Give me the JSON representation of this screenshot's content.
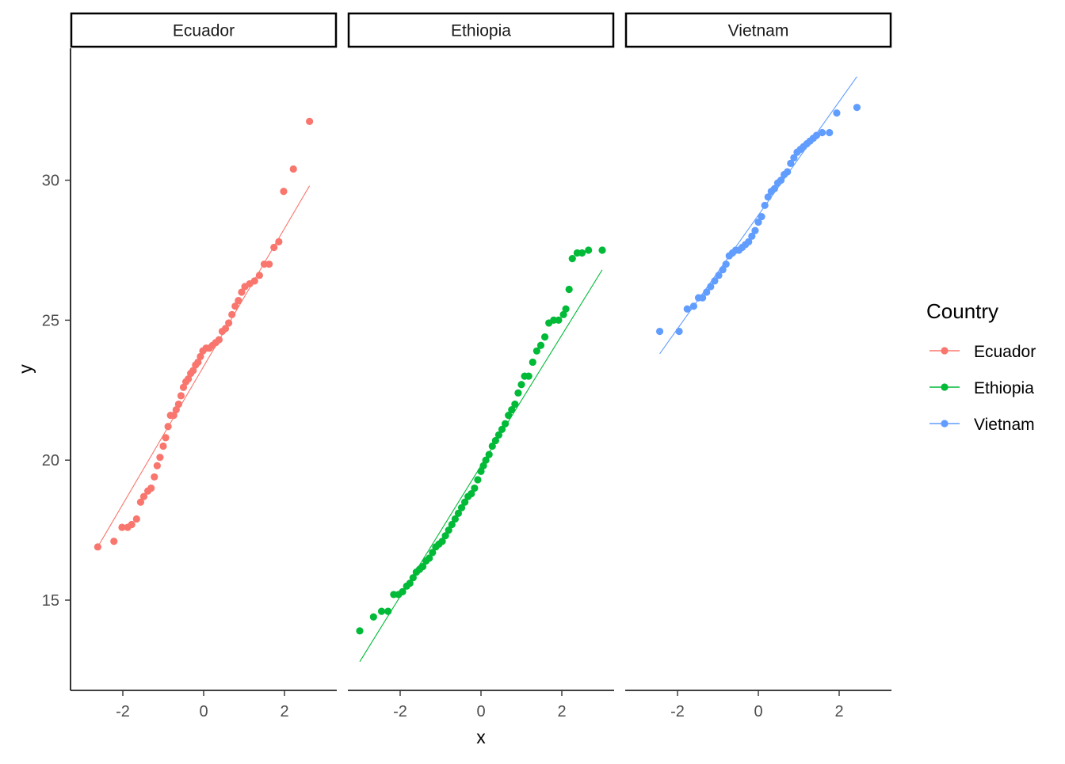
{
  "chart_data": {
    "type": "scatter",
    "subtype": "qq-plot",
    "xlabel": "x",
    "ylabel": "y",
    "xlim": [
      -3.2,
      3.2
    ],
    "ylim": [
      11.8,
      34.5
    ],
    "x_ticks": [
      -2,
      0,
      2
    ],
    "x_tick_labels": [
      "-2",
      "0",
      "2"
    ],
    "y_ticks": [
      15,
      20,
      25,
      30
    ],
    "y_tick_labels": [
      "15",
      "20",
      "25",
      "30"
    ],
    "grid": false,
    "legend": {
      "title": "Country",
      "position": "right",
      "entries": [
        "Ecuador",
        "Ethiopia",
        "Vietnam"
      ]
    },
    "series": [
      {
        "name": "Ecuador",
        "color": "#F8766D",
        "line": {
          "x": [
            -2.62,
            2.62
          ],
          "y": [
            16.9,
            29.8
          ]
        },
        "points": [
          [
            -2.62,
            16.9
          ],
          [
            -2.22,
            17.1
          ],
          [
            -2.02,
            17.6
          ],
          [
            -1.88,
            17.6
          ],
          [
            -1.78,
            17.7
          ],
          [
            -1.66,
            17.9
          ],
          [
            -1.56,
            18.5
          ],
          [
            -1.48,
            18.7
          ],
          [
            -1.38,
            18.9
          ],
          [
            -1.3,
            19.0
          ],
          [
            -1.22,
            19.4
          ],
          [
            -1.15,
            19.8
          ],
          [
            -1.08,
            20.1
          ],
          [
            -1.0,
            20.5
          ],
          [
            -0.94,
            20.8
          ],
          [
            -0.88,
            21.2
          ],
          [
            -0.82,
            21.6
          ],
          [
            -0.74,
            21.6
          ],
          [
            -0.68,
            21.8
          ],
          [
            -0.62,
            22.0
          ],
          [
            -0.56,
            22.3
          ],
          [
            -0.5,
            22.6
          ],
          [
            -0.44,
            22.8
          ],
          [
            -0.38,
            22.9
          ],
          [
            -0.32,
            23.1
          ],
          [
            -0.26,
            23.2
          ],
          [
            -0.2,
            23.4
          ],
          [
            -0.14,
            23.5
          ],
          [
            -0.08,
            23.7
          ],
          [
            -0.02,
            23.9
          ],
          [
            0.06,
            24.0
          ],
          [
            0.14,
            24.0
          ],
          [
            0.22,
            24.1
          ],
          [
            0.3,
            24.2
          ],
          [
            0.38,
            24.3
          ],
          [
            0.46,
            24.6
          ],
          [
            0.54,
            24.7
          ],
          [
            0.62,
            24.9
          ],
          [
            0.7,
            25.2
          ],
          [
            0.78,
            25.5
          ],
          [
            0.86,
            25.7
          ],
          [
            0.94,
            26.0
          ],
          [
            1.02,
            26.2
          ],
          [
            1.14,
            26.3
          ],
          [
            1.26,
            26.4
          ],
          [
            1.38,
            26.6
          ],
          [
            1.5,
            27.0
          ],
          [
            1.62,
            27.0
          ],
          [
            1.74,
            27.6
          ],
          [
            1.86,
            27.8
          ],
          [
            1.98,
            29.6
          ],
          [
            2.22,
            30.4
          ],
          [
            2.62,
            32.1
          ]
        ]
      },
      {
        "name": "Ethiopia",
        "color": "#00BA38",
        "line": {
          "x": [
            -3.0,
            3.0
          ],
          "y": [
            12.8,
            26.8
          ]
        },
        "points": [
          [
            -3.0,
            13.9
          ],
          [
            -2.66,
            14.4
          ],
          [
            -2.46,
            14.6
          ],
          [
            -2.3,
            14.6
          ],
          [
            -2.16,
            15.2
          ],
          [
            -2.04,
            15.2
          ],
          [
            -1.94,
            15.3
          ],
          [
            -1.84,
            15.5
          ],
          [
            -1.76,
            15.6
          ],
          [
            -1.68,
            15.8
          ],
          [
            -1.6,
            16.0
          ],
          [
            -1.52,
            16.1
          ],
          [
            -1.44,
            16.2
          ],
          [
            -1.36,
            16.4
          ],
          [
            -1.28,
            16.5
          ],
          [
            -1.2,
            16.7
          ],
          [
            -1.12,
            16.9
          ],
          [
            -1.04,
            17.0
          ],
          [
            -0.96,
            17.1
          ],
          [
            -0.88,
            17.3
          ],
          [
            -0.8,
            17.5
          ],
          [
            -0.72,
            17.7
          ],
          [
            -0.64,
            17.9
          ],
          [
            -0.56,
            18.1
          ],
          [
            -0.48,
            18.3
          ],
          [
            -0.4,
            18.5
          ],
          [
            -0.32,
            18.7
          ],
          [
            -0.24,
            18.8
          ],
          [
            -0.16,
            19.0
          ],
          [
            -0.08,
            19.3
          ],
          [
            0.0,
            19.6
          ],
          [
            0.06,
            19.8
          ],
          [
            0.12,
            20.0
          ],
          [
            0.2,
            20.2
          ],
          [
            0.28,
            20.5
          ],
          [
            0.36,
            20.7
          ],
          [
            0.44,
            20.9
          ],
          [
            0.52,
            21.1
          ],
          [
            0.6,
            21.3
          ],
          [
            0.68,
            21.6
          ],
          [
            0.76,
            21.8
          ],
          [
            0.84,
            22.0
          ],
          [
            0.92,
            22.4
          ],
          [
            1.0,
            22.7
          ],
          [
            1.08,
            23.0
          ],
          [
            1.18,
            23.0
          ],
          [
            1.28,
            23.5
          ],
          [
            1.38,
            23.9
          ],
          [
            1.48,
            24.1
          ],
          [
            1.58,
            24.4
          ],
          [
            1.68,
            24.9
          ],
          [
            1.8,
            25.0
          ],
          [
            1.92,
            25.0
          ],
          [
            2.04,
            25.2
          ],
          [
            2.1,
            25.4
          ],
          [
            2.18,
            26.1
          ],
          [
            2.26,
            27.2
          ],
          [
            2.38,
            27.4
          ],
          [
            2.5,
            27.4
          ],
          [
            2.66,
            27.5
          ],
          [
            3.0,
            27.5
          ]
        ]
      },
      {
        "name": "Vietnam",
        "color": "#619CFF",
        "line": {
          "x": [
            -2.44,
            2.44
          ],
          "y": [
            23.8,
            33.7
          ]
        },
        "points": [
          [
            -2.44,
            24.6
          ],
          [
            -1.96,
            24.6
          ],
          [
            -1.76,
            25.4
          ],
          [
            -1.6,
            25.5
          ],
          [
            -1.48,
            25.8
          ],
          [
            -1.38,
            25.8
          ],
          [
            -1.28,
            26.0
          ],
          [
            -1.18,
            26.2
          ],
          [
            -1.08,
            26.4
          ],
          [
            -0.98,
            26.6
          ],
          [
            -0.88,
            26.8
          ],
          [
            -0.8,
            27.0
          ],
          [
            -0.72,
            27.3
          ],
          [
            -0.64,
            27.4
          ],
          [
            -0.56,
            27.5
          ],
          [
            -0.48,
            27.5
          ],
          [
            -0.4,
            27.6
          ],
          [
            -0.32,
            27.7
          ],
          [
            -0.24,
            27.8
          ],
          [
            -0.16,
            28.0
          ],
          [
            -0.08,
            28.2
          ],
          [
            0.0,
            28.5
          ],
          [
            0.08,
            28.7
          ],
          [
            0.16,
            29.1
          ],
          [
            0.24,
            29.4
          ],
          [
            0.32,
            29.6
          ],
          [
            0.4,
            29.7
          ],
          [
            0.48,
            29.9
          ],
          [
            0.56,
            30.0
          ],
          [
            0.64,
            30.2
          ],
          [
            0.72,
            30.3
          ],
          [
            0.8,
            30.6
          ],
          [
            0.88,
            30.8
          ],
          [
            0.96,
            31.0
          ],
          [
            1.04,
            31.1
          ],
          [
            1.12,
            31.2
          ],
          [
            1.2,
            31.3
          ],
          [
            1.28,
            31.4
          ],
          [
            1.36,
            31.5
          ],
          [
            1.44,
            31.6
          ],
          [
            1.58,
            31.7
          ],
          [
            1.76,
            31.7
          ],
          [
            1.94,
            32.4
          ],
          [
            2.44,
            32.6
          ]
        ]
      }
    ]
  }
}
